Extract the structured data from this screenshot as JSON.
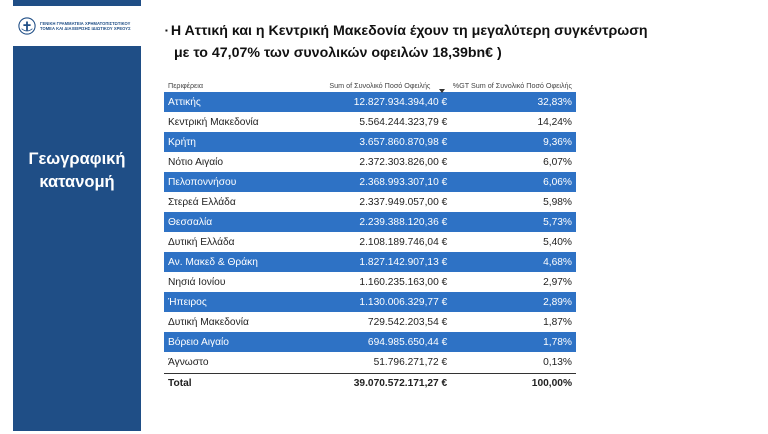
{
  "logo": {
    "text": "ΓΕΝΙΚΗ ΓΡΑΜΜΑΤΕΙΑ ΧΡΗΜΑΤΟΠΙΣΤΩΤΙΚΟΥ ΤΟΜΕΑ ΚΑΙ ΔΙΑΧΕΙΡΙΣΗΣ ΙΔΙΩΤΙΚΟΥ ΧΡΕΟΥΣ",
    "icon": "hellenic-emblem-icon"
  },
  "sidebar": {
    "title_line1": "Γεωγραφική",
    "title_line2": "κατανομή",
    "color": "#1f4e86"
  },
  "headline": {
    "line1": "Η Αττική και η Κεντρική Μακεδονία  έχουν τη μεγαλύτερη συγκέντρωση",
    "line2": "με το 47,07% των συνολικών οφειλών  18,39bn€    )"
  },
  "table": {
    "columns": [
      "Περιφέρεια",
      "Sum of Συνολικό Ποσό Οφειλής",
      "%GT Sum of Συνολικό Ποσό Οφειλής"
    ],
    "highlight_color": "#2e72c5",
    "rows": [
      {
        "region": "Αττικής",
        "amount": "12.827.934.394,40 €",
        "pct": "32,83%"
      },
      {
        "region": "Κεντρική Μακεδονία",
        "amount": "5.564.244.323,79 €",
        "pct": "14,24%"
      },
      {
        "region": "Κρήτη",
        "amount": "3.657.860.870,98 €",
        "pct": "9,36%"
      },
      {
        "region": "Νότιο Αιγαίο",
        "amount": "2.372.303.826,00 €",
        "pct": "6,07%"
      },
      {
        "region": "Πελοποννήσου",
        "amount": "2.368.993.307,10 €",
        "pct": "6,06%"
      },
      {
        "region": "Στερεά Ελλάδα",
        "amount": "2.337.949.057,00 €",
        "pct": "5,98%"
      },
      {
        "region": "Θεσσαλία",
        "amount": "2.239.388.120,36 €",
        "pct": "5,73%"
      },
      {
        "region": "Δυτική Ελλάδα",
        "amount": "2.108.189.746,04 €",
        "pct": "5,40%"
      },
      {
        "region": "Αν. Μακεδ & Θράκη",
        "amount": "1.827.142.907,13 €",
        "pct": "4,68%"
      },
      {
        "region": "Νησιά Ιονίου",
        "amount": "1.160.235.163,00 €",
        "pct": "2,97%"
      },
      {
        "region": "Ήπειρος",
        "amount": "1.130.006.329,77 €",
        "pct": "2,89%"
      },
      {
        "region": "Δυτική Μακεδονία",
        "amount": "729.542.203,54 €",
        "pct": "1,87%"
      },
      {
        "region": "Βόρειο Αιγαίο",
        "amount": "694.985.650,44 €",
        "pct": "1,78%"
      },
      {
        "region": "Άγνωστο",
        "amount": "51.796.271,72 €",
        "pct": "0,13%"
      }
    ],
    "total": {
      "label": "Total",
      "amount": "39.070.572.171,27 €",
      "pct": "100,00%"
    }
  }
}
